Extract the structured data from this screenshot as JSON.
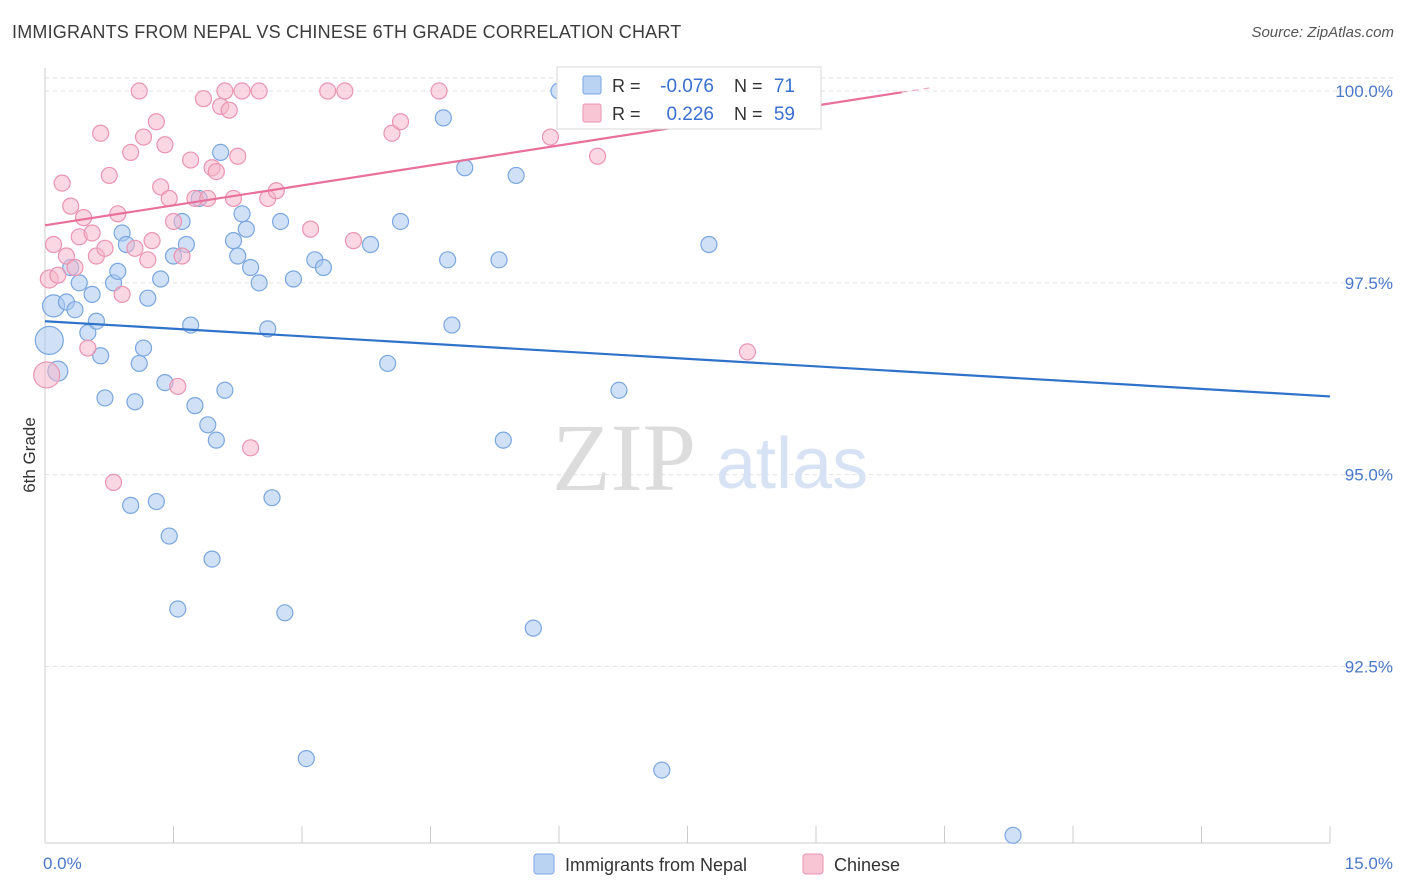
{
  "title": "IMMIGRANTS FROM NEPAL VS CHINESE 6TH GRADE CORRELATION CHART",
  "source": "Source: ZipAtlas.com",
  "watermark": {
    "zip": "ZIP",
    "atlas": "atlas"
  },
  "stats": {
    "nepal": {
      "r_label": "R =",
      "r_value": "-0.076",
      "n_label": "N =",
      "n_value": "71"
    },
    "chinese": {
      "r_label": "R =",
      "r_value": "0.226",
      "n_label": "N =",
      "n_value": "59"
    }
  },
  "colors": {
    "nepal_fill": "#a9c8f0",
    "nepal_stroke": "#7aa6e0",
    "nepal_line": "#2f72c9",
    "chinese_fill": "#f6b7cb",
    "chinese_stroke": "#ea94b2",
    "chinese_line": "#e8709a",
    "grid": "#e2e2e2",
    "tick_label": "#4a78c8"
  },
  "chart_data": {
    "type": "scatter",
    "xlabel": "",
    "ylabel": "6th Grade",
    "xlim": [
      0,
      15
    ],
    "ylim": [
      90.2,
      100.3
    ],
    "x_tick_labels": [
      {
        "value": 0,
        "label": "0.0%"
      },
      {
        "value": 15,
        "label": "15.0%"
      }
    ],
    "x_minor_ticks": [
      1.5,
      3.0,
      4.5,
      6.0,
      7.5,
      9.0,
      10.5,
      12.0,
      13.5
    ],
    "y_ticks": [
      {
        "value": 100.0,
        "label": "100.0%"
      },
      {
        "value": 97.5,
        "label": "97.5%"
      },
      {
        "value": 95.0,
        "label": "95.0%"
      },
      {
        "value": 92.5,
        "label": "92.5%"
      }
    ],
    "grid": true,
    "legend_position": "bottom-center",
    "series": [
      {
        "name": "Immigrants from Nepal",
        "trend": {
          "x0": 0,
          "y0": 97.0,
          "x1": 15,
          "y1": 96.02
        },
        "points": [
          [
            0.05,
            96.75,
            14
          ],
          [
            0.1,
            97.2,
            11
          ],
          [
            0.15,
            96.35,
            10
          ],
          [
            0.25,
            97.25,
            8
          ],
          [
            0.3,
            97.7,
            8
          ],
          [
            0.35,
            97.15,
            8
          ],
          [
            0.4,
            97.5,
            8
          ],
          [
            0.5,
            96.85,
            8
          ],
          [
            0.55,
            97.35,
            8
          ],
          [
            0.6,
            97.0,
            8
          ],
          [
            0.65,
            96.55,
            8
          ],
          [
            0.7,
            96.0,
            8
          ],
          [
            0.8,
            97.5,
            8
          ],
          [
            0.85,
            97.65,
            8
          ],
          [
            0.9,
            98.15,
            8
          ],
          [
            0.95,
            98.0,
            8
          ],
          [
            1.0,
            94.6,
            8
          ],
          [
            1.05,
            95.95,
            8
          ],
          [
            1.1,
            96.45,
            8
          ],
          [
            1.15,
            96.65,
            8
          ],
          [
            1.2,
            97.3,
            8
          ],
          [
            1.3,
            94.65,
            8
          ],
          [
            1.35,
            97.55,
            8
          ],
          [
            1.4,
            96.2,
            8
          ],
          [
            1.45,
            94.2,
            8
          ],
          [
            1.5,
            97.85,
            8
          ],
          [
            1.55,
            93.25,
            8
          ],
          [
            1.6,
            98.3,
            8
          ],
          [
            1.65,
            98.0,
            8
          ],
          [
            1.7,
            96.95,
            8
          ],
          [
            1.75,
            95.9,
            8
          ],
          [
            1.8,
            98.6,
            8
          ],
          [
            1.9,
            95.65,
            8
          ],
          [
            1.95,
            93.9,
            8
          ],
          [
            2.0,
            95.45,
            8
          ],
          [
            2.05,
            99.2,
            8
          ],
          [
            2.1,
            96.1,
            8
          ],
          [
            2.2,
            98.05,
            8
          ],
          [
            2.25,
            97.85,
            8
          ],
          [
            2.3,
            98.4,
            8
          ],
          [
            2.35,
            98.2,
            8
          ],
          [
            2.4,
            97.7,
            8
          ],
          [
            2.5,
            97.5,
            8
          ],
          [
            2.6,
            96.9,
            8
          ],
          [
            2.65,
            94.7,
            8
          ],
          [
            2.75,
            98.3,
            8
          ],
          [
            2.8,
            93.2,
            8
          ],
          [
            2.9,
            97.55,
            8
          ],
          [
            3.05,
            91.3,
            8
          ],
          [
            3.15,
            97.8,
            8
          ],
          [
            3.25,
            97.7,
            8
          ],
          [
            3.8,
            98.0,
            8
          ],
          [
            4.0,
            96.45,
            8
          ],
          [
            4.15,
            98.3,
            8
          ],
          [
            4.65,
            99.65,
            8
          ],
          [
            4.7,
            97.8,
            8
          ],
          [
            4.75,
            96.95,
            8
          ],
          [
            4.9,
            99.0,
            8
          ],
          [
            5.35,
            95.45,
            8
          ],
          [
            5.3,
            97.8,
            8
          ],
          [
            5.5,
            98.9,
            8
          ],
          [
            5.7,
            93.0,
            8
          ],
          [
            6.0,
            100.0,
            8
          ],
          [
            6.2,
            99.75,
            8
          ],
          [
            6.7,
            96.1,
            8
          ],
          [
            6.85,
            100.0,
            8
          ],
          [
            7.2,
            91.15,
            8
          ],
          [
            7.75,
            98.0,
            8
          ],
          [
            8.05,
            99.7,
            8
          ],
          [
            11.3,
            90.3,
            8
          ],
          [
            7.0,
            100.0,
            8
          ]
        ]
      },
      {
        "name": "Chinese",
        "trend": {
          "x0": 0,
          "y0": 98.25,
          "x1": 15,
          "y1": 100.85,
          "solid_until_x": 10.0
        },
        "points": [
          [
            0.02,
            96.3,
            13
          ],
          [
            0.05,
            97.55,
            9
          ],
          [
            0.1,
            98.0,
            8
          ],
          [
            0.15,
            97.6,
            8
          ],
          [
            0.2,
            98.8,
            8
          ],
          [
            0.25,
            97.85,
            8
          ],
          [
            0.3,
            98.5,
            8
          ],
          [
            0.35,
            97.7,
            8
          ],
          [
            0.4,
            98.1,
            8
          ],
          [
            0.45,
            98.35,
            8
          ],
          [
            0.5,
            96.65,
            8
          ],
          [
            0.55,
            98.15,
            8
          ],
          [
            0.6,
            97.85,
            8
          ],
          [
            0.65,
            99.45,
            8
          ],
          [
            0.7,
            97.95,
            8
          ],
          [
            0.75,
            98.9,
            8
          ],
          [
            0.8,
            94.9,
            8
          ],
          [
            0.85,
            98.4,
            8
          ],
          [
            0.9,
            97.35,
            8
          ],
          [
            1.0,
            99.2,
            8
          ],
          [
            1.05,
            97.95,
            8
          ],
          [
            1.1,
            100.0,
            8
          ],
          [
            1.15,
            99.4,
            8
          ],
          [
            1.2,
            97.8,
            8
          ],
          [
            1.25,
            98.05,
            8
          ],
          [
            1.3,
            99.6,
            8
          ],
          [
            1.35,
            98.75,
            8
          ],
          [
            1.4,
            99.3,
            8
          ],
          [
            1.45,
            98.6,
            8
          ],
          [
            1.5,
            98.3,
            8
          ],
          [
            1.55,
            96.15,
            8
          ],
          [
            1.6,
            97.85,
            8
          ],
          [
            1.7,
            99.1,
            8
          ],
          [
            1.75,
            98.6,
            8
          ],
          [
            1.85,
            99.9,
            8
          ],
          [
            1.9,
            98.6,
            8
          ],
          [
            1.95,
            99.0,
            8
          ],
          [
            2.0,
            98.95,
            8
          ],
          [
            2.05,
            99.8,
            8
          ],
          [
            2.1,
            100.0,
            8
          ],
          [
            2.15,
            99.75,
            8
          ],
          [
            2.2,
            98.6,
            8
          ],
          [
            2.25,
            99.15,
            8
          ],
          [
            2.3,
            100.0,
            8
          ],
          [
            2.4,
            95.35,
            8
          ],
          [
            2.5,
            100.0,
            8
          ],
          [
            2.6,
            98.6,
            8
          ],
          [
            2.7,
            98.7,
            8
          ],
          [
            3.1,
            98.2,
            8
          ],
          [
            3.3,
            100.0,
            8
          ],
          [
            3.5,
            100.0,
            8
          ],
          [
            3.6,
            98.05,
            8
          ],
          [
            4.05,
            99.45,
            8
          ],
          [
            4.15,
            99.6,
            8
          ],
          [
            4.6,
            100.0,
            8
          ],
          [
            5.9,
            99.4,
            8
          ],
          [
            6.45,
            99.15,
            8
          ],
          [
            6.1,
            99.65,
            8
          ],
          [
            8.2,
            96.6,
            8
          ]
        ]
      }
    ]
  }
}
